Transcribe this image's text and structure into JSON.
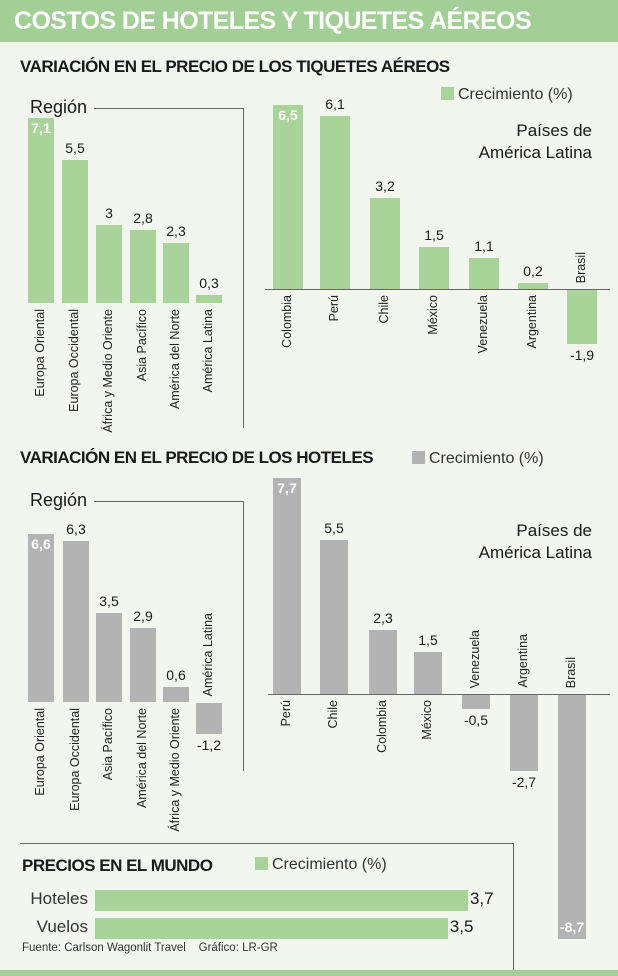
{
  "title": "COSTOS DE HOTELES Y TIQUETES AÉREOS",
  "colors": {
    "green": "#a8d49a",
    "gray": "#b3b3b3",
    "header": "#a2cf95"
  },
  "source": "Fuente: Carlson Wagonlit Travel",
  "credit": "Gráfico: LR-GR",
  "chart_data": [
    {
      "id": "vuelos-region",
      "type": "bar",
      "section_title": "VARIACIÓN EN EL PRECIO DE LOS TIQUETES AÉREOS",
      "legend": "Crecimiento (%)",
      "label": "Región",
      "color": "#a8d49a",
      "categories": [
        "Europa Oriental",
        "Europa Occidental",
        "África y Medio Oriente",
        "Asia Pacífico",
        "América del Norte",
        "América Latina"
      ],
      "values": [
        7.1,
        5.5,
        3,
        2.8,
        2.3,
        0.3
      ],
      "labels": [
        "7,1",
        "5,5",
        "3",
        "2,8",
        "2,3",
        "0,3"
      ]
    },
    {
      "id": "vuelos-paises",
      "type": "bar",
      "label_lines": [
        "Países de",
        "América Latina"
      ],
      "color": "#a8d49a",
      "categories": [
        "Colombia",
        "Perú",
        "Chile",
        "México",
        "Venezuela",
        "Argentina",
        "Brasil"
      ],
      "values": [
        6.5,
        6.1,
        3.2,
        1.5,
        1.1,
        0.2,
        -1.9
      ],
      "labels": [
        "6,5",
        "6,1",
        "3,2",
        "1,5",
        "1,1",
        "0,2",
        "-1,9"
      ]
    },
    {
      "id": "hoteles-region",
      "type": "bar",
      "section_title": "VARIACIÓN EN EL PRECIO DE LOS HOTELES",
      "legend": "Crecimiento (%)",
      "label": "Región",
      "color": "#b3b3b3",
      "categories": [
        "Europa Oriental",
        "Europa Occidental",
        "Asia Pacífico",
        "América del Norte",
        "África y Medio Oriente",
        "América Latina"
      ],
      "values": [
        6.6,
        6.3,
        3.5,
        2.9,
        0.6,
        -1.2
      ],
      "labels": [
        "6,6",
        "6,3",
        "3,5",
        "2,9",
        "0,6",
        "-1,2"
      ]
    },
    {
      "id": "hoteles-paises",
      "type": "bar",
      "label_lines": [
        "Países de",
        "América Latina"
      ],
      "color": "#b3b3b3",
      "categories": [
        "Perú",
        "Chile",
        "Colombia",
        "México",
        "Venezuela",
        "Argentina",
        "Brasil"
      ],
      "values": [
        7.7,
        5.5,
        2.3,
        1.5,
        -0.5,
        -2.7,
        -8.7
      ],
      "labels": [
        "7,7",
        "5,5",
        "2,3",
        "1,5",
        "-0,5",
        "-2,7",
        "-8,7"
      ]
    },
    {
      "id": "mundo",
      "type": "bar",
      "orientation": "horizontal",
      "section_title": "PRECIOS EN EL MUNDO",
      "legend": "Crecimiento (%)",
      "color": "#a8d49a",
      "categories": [
        "Hoteles",
        "Vuelos"
      ],
      "values": [
        3.7,
        3.5
      ],
      "labels": [
        "3,7",
        "3,5"
      ]
    }
  ]
}
